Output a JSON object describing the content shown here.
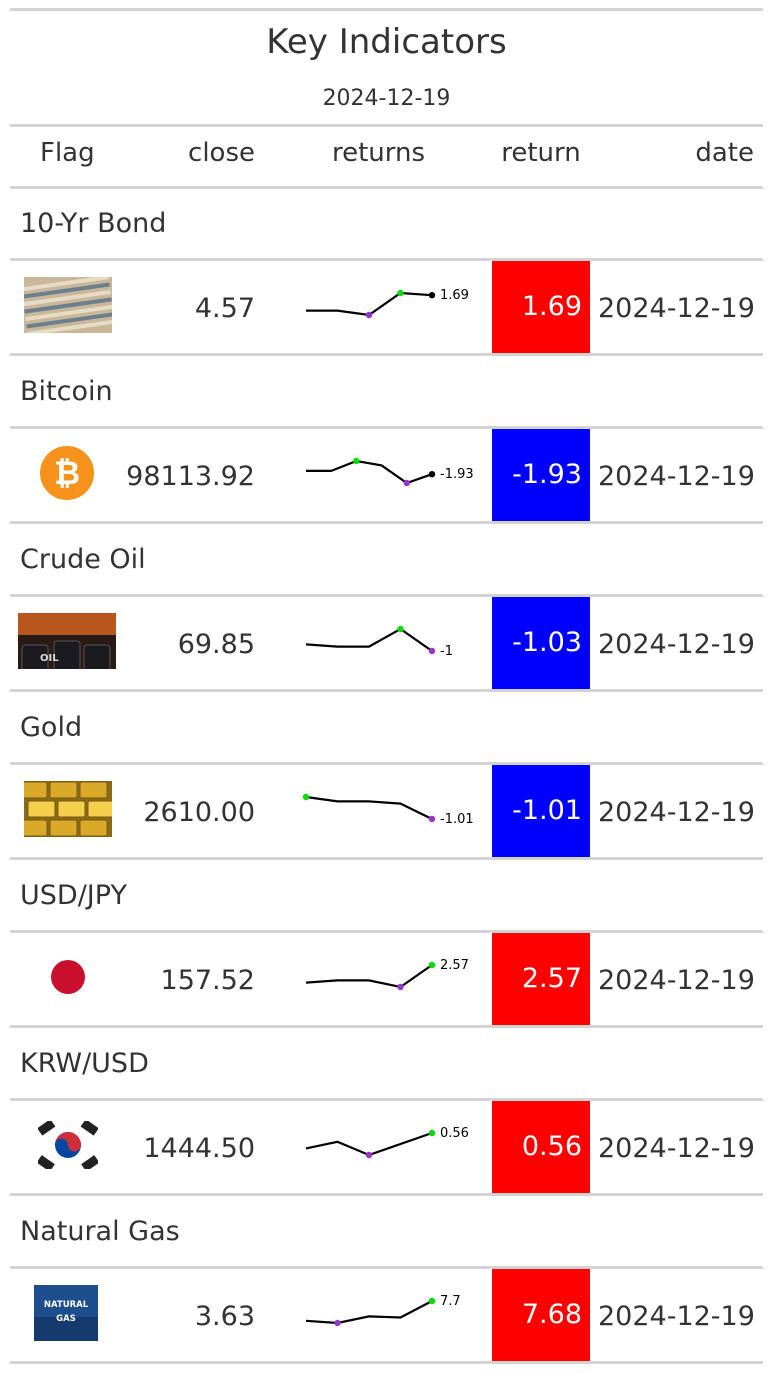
{
  "title": "Key Indicators",
  "subtitle": "2024-12-19",
  "columns": [
    "Flag",
    "close",
    "returns",
    "return",
    "date"
  ],
  "colors": {
    "positive": "#ff0000",
    "negative": "#0000ff",
    "spark_high": "#00dd00",
    "spark_low": "#9933cc",
    "spark_line": "#000000"
  },
  "rows": [
    {
      "group": "10-Yr Bond",
      "flag_icon": "treasury-bonds-image",
      "close": "4.57",
      "returns": [
        0.2,
        0.2,
        0.0,
        1.0,
        0.9
      ],
      "spark_label": "1.69",
      "return": "1.69",
      "direction": "positive",
      "date": "2024-12-19"
    },
    {
      "group": "Bitcoin",
      "flag_icon": "bitcoin-icon",
      "close": "98113.92",
      "returns": [
        0.55,
        0.55,
        1.0,
        0.8,
        0.0,
        0.4
      ],
      "spark_label": "-1.93",
      "return": "-1.93",
      "direction": "negative",
      "date": "2024-12-19"
    },
    {
      "group": "Crude Oil",
      "flag_icon": "oil-barrels-image",
      "close": "69.85",
      "returns": [
        0.3,
        0.2,
        0.2,
        1.0,
        0.0
      ],
      "spark_label": "-1",
      "return": "-1.03",
      "direction": "negative",
      "date": "2024-12-19"
    },
    {
      "group": "Gold",
      "flag_icon": "gold-bars-image",
      "close": "2610.00",
      "returns": [
        1.0,
        0.8,
        0.8,
        0.7,
        0.0
      ],
      "spark_label": "-1.01",
      "return": "-1.01",
      "direction": "negative",
      "date": "2024-12-19"
    },
    {
      "group": "USD/JPY",
      "flag_icon": "japan-flag-icon",
      "close": "157.52",
      "returns": [
        0.2,
        0.3,
        0.3,
        0.0,
        1.0
      ],
      "spark_label": "2.57",
      "return": "2.57",
      "direction": "positive",
      "date": "2024-12-19"
    },
    {
      "group": "KRW/USD",
      "flag_icon": "korea-flag-icon",
      "close": "1444.50",
      "returns": [
        0.3,
        0.6,
        0.0,
        0.5,
        1.0
      ],
      "spark_label": "0.56",
      "return": "0.56",
      "direction": "positive",
      "date": "2024-12-19"
    },
    {
      "group": "Natural Gas",
      "flag_icon": "natural-gas-image",
      "close": "3.63",
      "returns": [
        0.1,
        0.0,
        0.3,
        0.25,
        1.0
      ],
      "spark_label": "7.7",
      "return": "7.68",
      "direction": "positive",
      "date": "2024-12-19"
    }
  ],
  "flag_texts": {
    "oil": "OIL",
    "natural_gas": "NATURAL GAS"
  }
}
